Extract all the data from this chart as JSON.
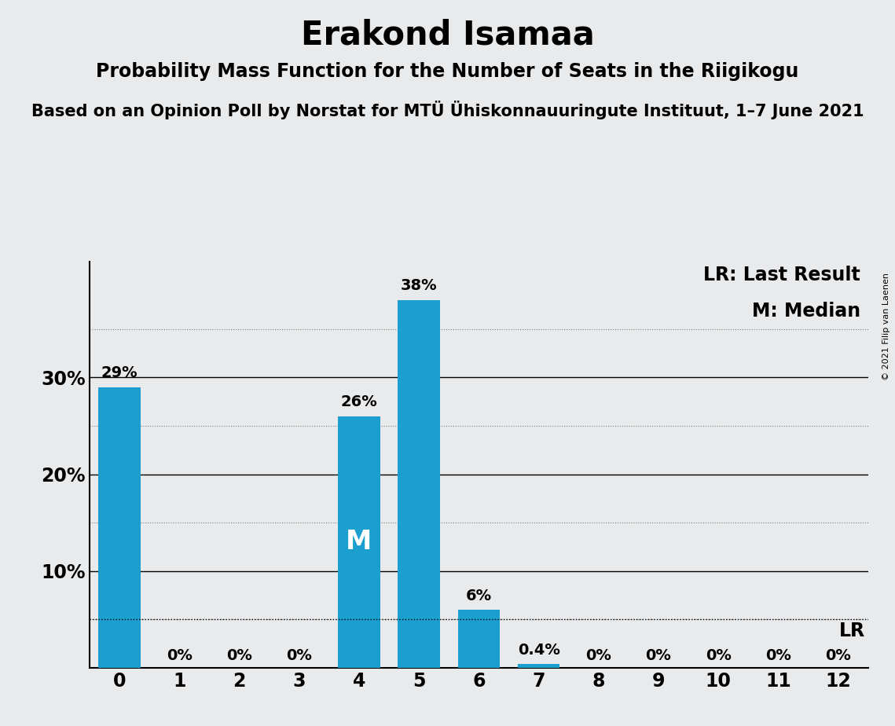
{
  "title": "Erakond Isamaa",
  "subtitle": "Probability Mass Function for the Number of Seats in the Riigikogu",
  "source_line": "Based on an Opinion Poll by Norstat for MTÜ Ühiskonnauuringute Instituut, 1–7 June 2021",
  "copyright": "© 2021 Filip van Laenen",
  "categories": [
    0,
    1,
    2,
    3,
    4,
    5,
    6,
    7,
    8,
    9,
    10,
    11,
    12
  ],
  "values": [
    0.29,
    0.0,
    0.0,
    0.0,
    0.26,
    0.38,
    0.06,
    0.004,
    0.0,
    0.0,
    0.0,
    0.0,
    0.0
  ],
  "bar_color": "#1a9fce",
  "background_color": "#e9eaec",
  "median_bar": 4,
  "median_label": "M",
  "lr_value": 0.05,
  "lr_label": "LR",
  "legend_lr": "LR: Last Result",
  "legend_m": "M: Median",
  "ylim": [
    0,
    0.42
  ],
  "solid_lines": [
    0.1,
    0.2,
    0.3
  ],
  "dotted_lines": [
    0.05,
    0.15,
    0.25,
    0.35
  ],
  "ytick_positions": [
    0.1,
    0.2,
    0.3
  ],
  "ytick_labels": [
    "10%",
    "20%",
    "30%"
  ],
  "bar_labels": [
    "29%",
    "0%",
    "0%",
    "0%",
    "26%",
    "38%",
    "6%",
    "0.4%",
    "0%",
    "0%",
    "0%",
    "0%",
    "0%"
  ],
  "title_fontsize": 30,
  "subtitle_fontsize": 17,
  "source_fontsize": 15,
  "bar_label_fontsize": 14,
  "tick_fontsize": 17,
  "legend_fontsize": 17,
  "median_fontsize": 24,
  "copyright_fontsize": 8
}
